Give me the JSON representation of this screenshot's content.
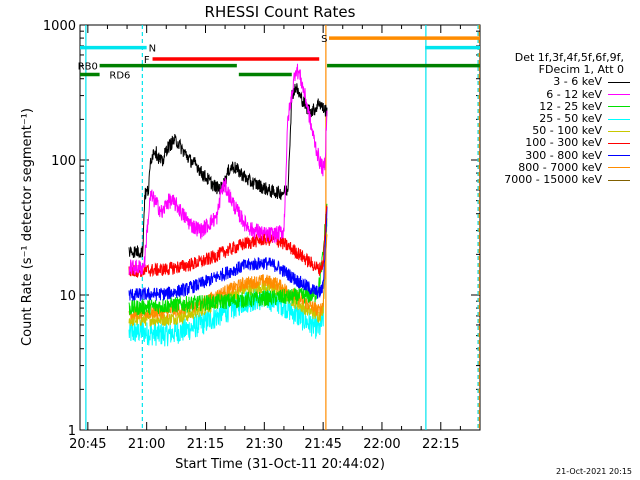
{
  "chart_data": {
    "type": "line",
    "title": "RHESSI Count Rates",
    "xlabel": "Start Time (31-Oct-11 20:44:02)",
    "ylabel": "Count Rate (s⁻¹ detector segment⁻¹)",
    "yscale": "log",
    "ylim": [
      1,
      1000
    ],
    "xlim_minutes": [
      -2,
      100
    ],
    "x_ticks": [
      {
        "t": 0,
        "label": "20:45"
      },
      {
        "t": 15,
        "label": "21:00"
      },
      {
        "t": 30,
        "label": "21:15"
      },
      {
        "t": 45,
        "label": "21:30"
      },
      {
        "t": 60,
        "label": "21:45"
      },
      {
        "t": 75,
        "label": "22:00"
      },
      {
        "t": 90,
        "label": "22:15"
      }
    ],
    "y_ticks": [
      {
        "v": 1,
        "label": "1"
      },
      {
        "v": 10,
        "label": "10"
      },
      {
        "v": 100,
        "label": "100"
      },
      {
        "v": 1000,
        "label": "1000"
      }
    ],
    "legend_header": [
      "Det 1f,3f,4f,5f,6f,9f,",
      "FDecim 1, Att 0"
    ],
    "series": [
      {
        "name": "3 - 6 keV",
        "color": "#000000",
        "noise": 0.05,
        "points": [
          [
            10.5,
            21
          ],
          [
            14,
            21
          ],
          [
            14.5,
            55
          ],
          [
            15.5,
            60
          ],
          [
            16,
            100
          ],
          [
            17,
            120
          ],
          [
            18,
            105
          ],
          [
            19,
            95
          ],
          [
            20,
            120
          ],
          [
            21,
            130
          ],
          [
            22,
            140
          ],
          [
            23,
            135
          ],
          [
            24,
            120
          ],
          [
            25,
            110
          ],
          [
            26,
            100
          ],
          [
            27,
            95
          ],
          [
            28,
            90
          ],
          [
            29,
            80
          ],
          [
            30,
            75
          ],
          [
            31,
            70
          ],
          [
            32,
            65
          ],
          [
            33,
            62
          ],
          [
            34,
            62
          ],
          [
            35,
            70
          ],
          [
            36,
            85
          ],
          [
            37,
            90
          ],
          [
            38,
            85
          ],
          [
            39,
            80
          ],
          [
            40,
            75
          ],
          [
            41,
            70
          ],
          [
            42,
            68
          ],
          [
            43,
            66
          ],
          [
            44,
            64
          ],
          [
            45,
            62
          ],
          [
            46,
            60
          ],
          [
            47,
            58
          ],
          [
            48,
            58
          ],
          [
            49,
            57
          ],
          [
            50,
            58
          ],
          [
            51,
            60
          ],
          [
            52,
            300
          ],
          [
            53,
            350
          ],
          [
            54,
            300
          ],
          [
            55,
            270
          ],
          [
            56,
            240
          ],
          [
            57,
            230
          ],
          [
            58,
            240
          ],
          [
            59,
            270
          ],
          [
            60,
            240
          ],
          [
            61,
            230
          ]
        ]
      },
      {
        "name": "6 - 12 keV",
        "color": "#ff00ff",
        "noise": 0.06,
        "points": [
          [
            10.5,
            16
          ],
          [
            14,
            16
          ],
          [
            14.5,
            18
          ],
          [
            15,
            28
          ],
          [
            16,
            55
          ],
          [
            17,
            50
          ],
          [
            18,
            45
          ],
          [
            19,
            40
          ],
          [
            20,
            48
          ],
          [
            21,
            50
          ],
          [
            22,
            48
          ],
          [
            23,
            45
          ],
          [
            24,
            40
          ],
          [
            25,
            37
          ],
          [
            26,
            34
          ],
          [
            27,
            32
          ],
          [
            28,
            31
          ],
          [
            29,
            30
          ],
          [
            30,
            32
          ],
          [
            31,
            34
          ],
          [
            32,
            36
          ],
          [
            33,
            38
          ],
          [
            34,
            60
          ],
          [
            35,
            65
          ],
          [
            36,
            55
          ],
          [
            37,
            48
          ],
          [
            38,
            42
          ],
          [
            39,
            38
          ],
          [
            40,
            34
          ],
          [
            41,
            32
          ],
          [
            42,
            30
          ],
          [
            43,
            30
          ],
          [
            44,
            29
          ],
          [
            45,
            28
          ],
          [
            46,
            28
          ],
          [
            47,
            28
          ],
          [
            48,
            28
          ],
          [
            49,
            29
          ],
          [
            50,
            30
          ],
          [
            51,
            200
          ],
          [
            52,
            300
          ],
          [
            53,
            480
          ],
          [
            54,
            430
          ],
          [
            55,
            330
          ],
          [
            56,
            250
          ],
          [
            57,
            175
          ],
          [
            58,
            130
          ],
          [
            59,
            100
          ],
          [
            60,
            85
          ],
          [
            60.5,
            95
          ],
          [
            61,
            270
          ]
        ]
      },
      {
        "name": "12 - 25 keV",
        "color": "#00e000",
        "noise": 0.06,
        "points": [
          [
            10.5,
            8
          ],
          [
            58,
            10
          ],
          [
            59,
            12
          ],
          [
            60,
            20
          ],
          [
            61,
            50
          ]
        ]
      },
      {
        "name": "25 - 50 keV",
        "color": "#00ffff",
        "noise": 0.09,
        "points": [
          [
            10.5,
            5.2
          ],
          [
            14,
            5.4
          ],
          [
            15,
            5.2
          ],
          [
            20,
            5.1
          ],
          [
            25,
            5.5
          ],
          [
            30,
            6.3
          ],
          [
            35,
            7.5
          ],
          [
            40,
            9
          ],
          [
            45,
            9.5
          ],
          [
            48,
            9
          ],
          [
            50,
            8.4
          ],
          [
            53,
            7.2
          ],
          [
            56,
            6.3
          ],
          [
            59,
            5.6
          ],
          [
            60,
            6.5
          ],
          [
            61,
            40
          ]
        ]
      },
      {
        "name": "50 - 100 keV",
        "color": "#c8c800",
        "noise": 0.05,
        "points": [
          [
            10.5,
            6.5
          ],
          [
            15,
            6.6
          ],
          [
            20,
            6.6
          ],
          [
            25,
            7
          ],
          [
            30,
            8
          ],
          [
            35,
            9.5
          ],
          [
            40,
            11
          ],
          [
            45,
            11.5
          ],
          [
            48,
            11
          ],
          [
            50,
            10.2
          ],
          [
            53,
            8.8
          ],
          [
            56,
            7.8
          ],
          [
            59,
            7
          ],
          [
            60,
            8
          ],
          [
            61,
            35
          ]
        ]
      },
      {
        "name": "100 - 300 keV",
        "color": "#ff0000",
        "noise": 0.05,
        "points": [
          [
            10.5,
            15
          ],
          [
            15,
            15.2
          ],
          [
            20,
            15.5
          ],
          [
            25,
            16.5
          ],
          [
            30,
            18
          ],
          [
            35,
            21
          ],
          [
            40,
            24
          ],
          [
            45,
            26
          ],
          [
            48,
            25.5
          ],
          [
            50,
            24
          ],
          [
            53,
            21
          ],
          [
            56,
            18
          ],
          [
            59,
            15.5
          ],
          [
            60,
            17
          ],
          [
            61,
            50
          ]
        ]
      },
      {
        "name": "300 - 800 keV",
        "color": "#0000ff",
        "noise": 0.05,
        "points": [
          [
            10.5,
            10
          ],
          [
            15,
            10.1
          ],
          [
            20,
            10.2
          ],
          [
            25,
            11
          ],
          [
            30,
            12.5
          ],
          [
            35,
            14.5
          ],
          [
            40,
            16.5
          ],
          [
            45,
            17.3
          ],
          [
            48,
            16.5
          ],
          [
            50,
            15
          ],
          [
            53,
            13
          ],
          [
            56,
            11.5
          ],
          [
            59,
            10.3
          ],
          [
            60,
            11.5
          ],
          [
            61,
            45
          ]
        ]
      },
      {
        "name": "800 - 7000 keV",
        "color": "#ff8c00",
        "noise": 0.05,
        "points": [
          [
            10.5,
            7.3
          ],
          [
            15,
            7.4
          ],
          [
            20,
            7.5
          ],
          [
            25,
            8
          ],
          [
            30,
            9
          ],
          [
            35,
            10.6
          ],
          [
            40,
            12.2
          ],
          [
            45,
            12.8
          ],
          [
            48,
            12.2
          ],
          [
            50,
            11.2
          ],
          [
            53,
            9.8
          ],
          [
            56,
            8.6
          ],
          [
            59,
            7.6
          ],
          [
            60,
            8.5
          ],
          [
            61,
            30
          ]
        ]
      },
      {
        "name": "7000 - 15000 keV",
        "color": "#806000",
        "noise": 0.04,
        "points": [
          [
            10.5,
            8.6
          ],
          [
            15,
            8.7
          ],
          [
            20,
            8.8
          ],
          [
            25,
            9.4
          ],
          [
            30,
            10.5
          ],
          [
            35,
            12.4
          ],
          [
            40,
            14.2
          ],
          [
            45,
            14.8
          ],
          [
            48,
            14.2
          ],
          [
            50,
            13
          ],
          [
            53,
            11.3
          ],
          [
            56,
            10
          ],
          [
            59,
            8.9
          ],
          [
            60,
            9.8
          ],
          [
            61,
            28
          ]
        ]
      }
    ],
    "flag_bars": [
      {
        "label": "N",
        "color": "#00e5ee",
        "level": 680,
        "segments": [
          [
            -2,
            15
          ]
        ],
        "label_t": 15.5
      },
      {
        "label": "F",
        "color": "#ff0000",
        "level": 560,
        "segments": [
          [
            16.5,
            59
          ]
        ],
        "label_t": 14.3
      },
      {
        "label": "RB0",
        "color": "#008000",
        "level": 500,
        "segments": [
          [
            3,
            38
          ],
          [
            61,
            100
          ]
        ],
        "label_t": -2.6
      },
      {
        "label": "RD6",
        "color": "#008000",
        "level": 430,
        "segments": [
          [
            -2,
            3
          ],
          [
            38.5,
            52
          ]
        ],
        "label_t": 5.5
      },
      {
        "label": "S",
        "color": "#ff8c00",
        "level": 800,
        "segments": [
          [
            61.5,
            100
          ]
        ],
        "label_t": 59.5
      },
      {
        "label": "",
        "color": "#00e5ee",
        "level": 680,
        "segments": [
          [
            86,
            100
          ]
        ]
      }
    ],
    "vertical_lines": [
      {
        "t": -0.5,
        "color": "#00e5ee",
        "style": "solid"
      },
      {
        "t": 13.9,
        "color": "#00e5ee",
        "style": "dashed"
      },
      {
        "t": 60.7,
        "color": "#ff8c00",
        "style": "solid"
      },
      {
        "t": 86.2,
        "color": "#00e5ee",
        "style": "solid"
      },
      {
        "t": 99.5,
        "color": "#00e5ee",
        "style": "dashed"
      },
      {
        "t": 99.8,
        "color": "#ff8c00",
        "style": "dashed"
      }
    ],
    "gridlines": false,
    "legend_position": "right"
  },
  "footer": {
    "stamp": "21-Oct-2021 20:15"
  }
}
